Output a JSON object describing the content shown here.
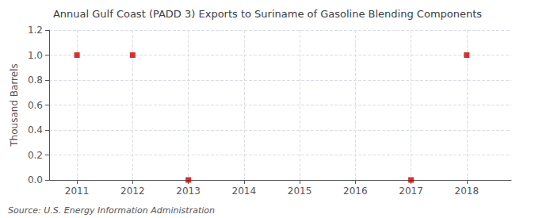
{
  "chart_data": {
    "type": "scatter",
    "title": "Annual Gulf Coast (PADD 3) Exports to Suriname of Gasoline Blending Components",
    "ylabel": "Thousand Barrels",
    "annotations": [
      "Source: U.S. Energy Information Administration"
    ],
    "x": [
      2011,
      2012,
      2013,
      2017,
      2018
    ],
    "values": [
      1.0,
      1.0,
      0.0,
      0.0,
      1.0
    ],
    "color": "#cc0000",
    "marker": "square",
    "xlim": [
      2010.5,
      2018.8
    ],
    "xticks": [
      2011,
      2012,
      2013,
      2014,
      2015,
      2016,
      2017,
      2018
    ],
    "ylim": [
      0.0,
      1.2
    ],
    "yticks": [
      {
        "value": 0,
        "label": "0.0"
      },
      0.2,
      0.4,
      0.6,
      0.8,
      {
        "value": 1,
        "label": "1.0"
      },
      1.2
    ],
    "grid": true
  }
}
